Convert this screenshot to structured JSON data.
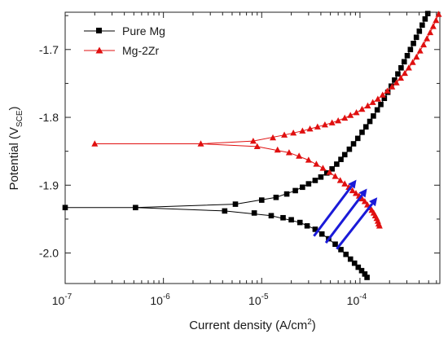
{
  "chart_data": {
    "type": "line",
    "title": "",
    "xlabel": "Current density (A/cm",
    "xlabel_sup": "2",
    "xlabel_end": ")",
    "ylabel_main": "Potential (V",
    "ylabel_sub": "SCE",
    "ylabel_end": ")",
    "x_scale": "log",
    "xlim": [
      1e-07,
      0.00065
    ],
    "ylim": [
      -2.045,
      -1.645
    ],
    "x_ticks": [
      {
        "value": 1e-07,
        "base": "10",
        "exp": "-7"
      },
      {
        "value": 1e-06,
        "base": "10",
        "exp": "-6"
      },
      {
        "value": 1e-05,
        "base": "10",
        "exp": "-5"
      },
      {
        "value": 0.0001,
        "base": "10",
        "exp": "-4"
      }
    ],
    "y_ticks": [
      {
        "value": -1.7,
        "label": "-1.7"
      },
      {
        "value": -1.8,
        "label": "-1.8"
      },
      {
        "value": -1.9,
        "label": "-1.9"
      },
      {
        "value": -2.0,
        "label": "-2.0"
      }
    ],
    "grid": false,
    "legend_position": "top-left",
    "series": [
      {
        "name": "Pure Mg",
        "color": "#000000",
        "marker": "square",
        "points": [
          [
            1e-07,
            -1.933
          ],
          [
            5.2e-07,
            -1.933
          ],
          [
            4.2e-06,
            -1.938
          ],
          [
            8.4e-06,
            -1.941
          ],
          [
            1.25e-05,
            -1.945
          ],
          [
            1.65e-05,
            -1.948
          ],
          [
            2e-05,
            -1.951
          ],
          [
            2.45e-05,
            -1.955
          ],
          [
            2.9e-05,
            -1.96
          ],
          [
            3.5e-05,
            -1.965
          ],
          [
            4.1e-05,
            -1.972
          ],
          [
            4.8e-05,
            -1.979
          ],
          [
            5.6e-05,
            -1.987
          ],
          [
            6.4e-05,
            -1.995
          ],
          [
            7.2e-05,
            -2.002
          ],
          [
            8e-05,
            -2.009
          ],
          [
            8.8e-05,
            -2.015
          ],
          [
            9.6e-05,
            -2.021
          ],
          [
            0.000104,
            -2.026
          ],
          [
            0.000112,
            -2.031
          ],
          [
            0.000118,
            -2.036
          ],
          [
            5.4e-06,
            -1.928
          ],
          [
            1e-05,
            -1.922
          ],
          [
            1.4e-05,
            -1.918
          ],
          [
            1.8e-05,
            -1.913
          ],
          [
            2.2e-05,
            -1.908
          ],
          [
            2.6e-05,
            -1.903
          ],
          [
            3e-05,
            -1.898
          ],
          [
            3.5e-05,
            -1.893
          ],
          [
            4e-05,
            -1.888
          ],
          [
            4.6e-05,
            -1.882
          ],
          [
            5.2e-05,
            -1.876
          ],
          [
            5.8e-05,
            -1.869
          ],
          [
            6.4e-05,
            -1.862
          ],
          [
            7e-05,
            -1.855
          ],
          [
            7.8e-05,
            -1.847
          ],
          [
            8.6e-05,
            -1.839
          ],
          [
            9.5e-05,
            -1.831
          ],
          [
            0.000105,
            -1.822
          ],
          [
            0.000115,
            -1.814
          ],
          [
            0.000126,
            -1.806
          ],
          [
            0.000137,
            -1.798
          ],
          [
            0.00015,
            -1.789
          ],
          [
            0.000163,
            -1.781
          ],
          [
            0.000177,
            -1.772
          ],
          [
            0.000192,
            -1.763
          ],
          [
            0.000208,
            -1.754
          ],
          [
            0.000225,
            -1.745
          ],
          [
            0.000243,
            -1.736
          ],
          [
            0.000262,
            -1.727
          ],
          [
            0.000282,
            -1.718
          ],
          [
            0.000303,
            -1.709
          ],
          [
            0.000326,
            -1.7
          ],
          [
            0.00035,
            -1.691
          ],
          [
            0.000375,
            -1.682
          ],
          [
            0.000402,
            -1.673
          ],
          [
            0.00043,
            -1.664
          ],
          [
            0.00046,
            -1.655
          ],
          [
            0.00049,
            -1.647
          ]
        ]
      },
      {
        "name": "Mg-2Zr",
        "color": "#e01010",
        "marker": "triangle",
        "points": [
          [
            2e-07,
            -1.839
          ],
          [
            2.4e-06,
            -1.839
          ],
          [
            9e-06,
            -1.843
          ],
          [
            1.45e-05,
            -1.848
          ],
          [
            1.9e-05,
            -1.852
          ],
          [
            2.4e-05,
            -1.857
          ],
          [
            3e-05,
            -1.863
          ],
          [
            3.6e-05,
            -1.869
          ],
          [
            4.2e-05,
            -1.875
          ],
          [
            4.9e-05,
            -1.881
          ],
          [
            5.6e-05,
            -1.887
          ],
          [
            6.3e-05,
            -1.893
          ],
          [
            7e-05,
            -1.898
          ],
          [
            7.7e-05,
            -1.903
          ],
          [
            8.4e-05,
            -1.908
          ],
          [
            9.1e-05,
            -1.912
          ],
          [
            9.8e-05,
            -1.916
          ],
          [
            0.000105,
            -1.92
          ],
          [
            0.000112,
            -1.924
          ],
          [
            0.000119,
            -1.929
          ],
          [
            0.000126,
            -1.933
          ],
          [
            0.000132,
            -1.937
          ],
          [
            0.000138,
            -1.941
          ],
          [
            0.000143,
            -1.945
          ],
          [
            0.000148,
            -1.949
          ],
          [
            0.000152,
            -1.953
          ],
          [
            0.000155,
            -1.957
          ],
          [
            0.000158,
            -1.96
          ],
          [
            8.2e-06,
            -1.835
          ],
          [
            1.3e-05,
            -1.83
          ],
          [
            1.7e-05,
            -1.826
          ],
          [
            2.1e-05,
            -1.823
          ],
          [
            2.6e-05,
            -1.82
          ],
          [
            3.1e-05,
            -1.817
          ],
          [
            3.7e-05,
            -1.814
          ],
          [
            4.4e-05,
            -1.811
          ],
          [
            5.2e-05,
            -1.808
          ],
          [
            6e-05,
            -1.805
          ],
          [
            7e-05,
            -1.801
          ],
          [
            8e-05,
            -1.797
          ],
          [
            9.2e-05,
            -1.793
          ],
          [
            0.000105,
            -1.788
          ],
          [
            0.00012,
            -1.783
          ],
          [
            0.000135,
            -1.778
          ],
          [
            0.000152,
            -1.773
          ],
          [
            0.00017,
            -1.767
          ],
          [
            0.00019,
            -1.761
          ],
          [
            0.000212,
            -1.755
          ],
          [
            0.000235,
            -1.749
          ],
          [
            0.00026,
            -1.742
          ],
          [
            0.000286,
            -1.735
          ],
          [
            0.000314,
            -1.727
          ],
          [
            0.000344,
            -1.719
          ],
          [
            0.000376,
            -1.711
          ],
          [
            0.000409,
            -1.702
          ],
          [
            0.000444,
            -1.693
          ],
          [
            0.00048,
            -1.684
          ],
          [
            0.000518,
            -1.675
          ],
          [
            0.000556,
            -1.666
          ],
          [
            0.000594,
            -1.657
          ],
          [
            0.000632,
            -1.648
          ]
        ],
        "lines": [
          [
            [
              2e-07,
              -1.839
            ],
            [
              2.4e-06,
              -1.839
            ],
            [
              9e-06,
              -1.843
            ],
            [
              1.9e-05,
              -1.852
            ],
            [
              3e-05,
              -1.863
            ],
            [
              4.2e-05,
              -1.875
            ],
            [
              5.6e-05,
              -1.887
            ],
            [
              7e-05,
              -1.898
            ],
            [
              8.4e-05,
              -1.908
            ],
            [
              9.8e-05,
              -1.916
            ],
            [
              0.000112,
              -1.924
            ],
            [
              0.000126,
              -1.933
            ],
            [
              0.000138,
              -1.941
            ],
            [
              0.000148,
              -1.949
            ],
            [
              0.000155,
              -1.957
            ],
            [
              0.000158,
              -1.96
            ]
          ],
          [
            [
              2.4e-06,
              -1.839
            ],
            [
              8.2e-06,
              -1.835
            ],
            [
              1.7e-05,
              -1.826
            ],
            [
              2.6e-05,
              -1.82
            ],
            [
              3.7e-05,
              -1.814
            ],
            [
              5.2e-05,
              -1.808
            ],
            [
              7e-05,
              -1.801
            ],
            [
              9.2e-05,
              -1.793
            ],
            [
              0.00012,
              -1.783
            ],
            [
              0.000152,
              -1.773
            ],
            [
              0.00019,
              -1.761
            ],
            [
              0.000235,
              -1.749
            ],
            [
              0.000286,
              -1.735
            ],
            [
              0.000344,
              -1.719
            ],
            [
              0.000409,
              -1.702
            ],
            [
              0.00048,
              -1.684
            ],
            [
              0.000556,
              -1.666
            ],
            [
              0.000632,
              -1.648
            ]
          ]
        ]
      }
    ],
    "black_lines": [
      [
        [
          1e-07,
          -1.933
        ],
        [
          5.2e-07,
          -1.933
        ],
        [
          4.2e-06,
          -1.938
        ],
        [
          1.25e-05,
          -1.945
        ],
        [
          2.45e-05,
          -1.955
        ],
        [
          3.5e-05,
          -1.965
        ],
        [
          4.8e-05,
          -1.979
        ],
        [
          6.4e-05,
          -1.995
        ],
        [
          8e-05,
          -2.009
        ],
        [
          9.6e-05,
          -2.021
        ],
        [
          0.000112,
          -2.031
        ],
        [
          0.000118,
          -2.036
        ]
      ],
      [
        [
          5.2e-07,
          -1.933
        ],
        [
          5.4e-06,
          -1.928
        ],
        [
          1.4e-05,
          -1.918
        ],
        [
          2.2e-05,
          -1.908
        ],
        [
          3e-05,
          -1.898
        ],
        [
          4e-05,
          -1.888
        ],
        [
          5.2e-05,
          -1.876
        ],
        [
          6.4e-05,
          -1.862
        ],
        [
          7.8e-05,
          -1.847
        ],
        [
          9.5e-05,
          -1.831
        ],
        [
          0.000115,
          -1.814
        ],
        [
          0.000137,
          -1.798
        ],
        [
          0.000163,
          -1.781
        ],
        [
          0.000192,
          -1.763
        ],
        [
          0.000225,
          -1.745
        ],
        [
          0.000262,
          -1.727
        ],
        [
          0.000303,
          -1.709
        ],
        [
          0.00035,
          -1.691
        ],
        [
          0.000402,
          -1.673
        ],
        [
          0.00046,
          -1.655
        ],
        [
          0.00049,
          -1.647
        ]
      ]
    ],
    "arrows": [
      {
        "color": "#1a1ad8",
        "from": [
          3.4e-05,
          -1.975
        ],
        "to": [
          9.2e-05,
          -1.892
        ]
      },
      {
        "color": "#1a1ad8",
        "from": [
          4.5e-05,
          -1.985
        ],
        "to": [
          0.000118,
          -1.905
        ]
      },
      {
        "color": "#1a1ad8",
        "from": [
          5.8e-05,
          -1.994
        ],
        "to": [
          0.00015,
          -1.918
        ]
      }
    ]
  }
}
